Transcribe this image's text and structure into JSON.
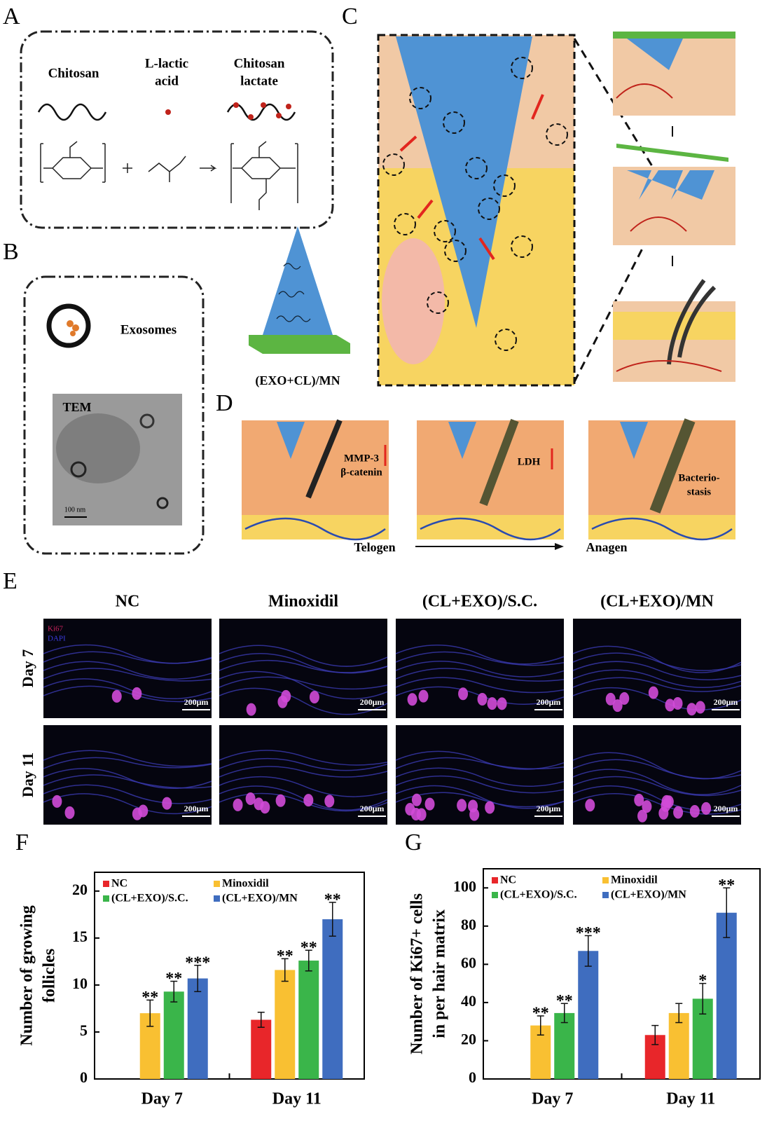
{
  "panel_labels": [
    "A",
    "B",
    "C",
    "D",
    "E",
    "F",
    "G"
  ],
  "panel_a": {
    "chitosan": "Chitosan",
    "lactic_acid": [
      "L-lactic",
      "acid"
    ],
    "chitosan_lactate": [
      "Chitosan",
      "lactate"
    ]
  },
  "panel_b": {
    "exosomes": "Exosomes",
    "tem": "TEM",
    "scale": "100 nm",
    "microneedle": "(EXO+CL)/MN"
  },
  "panel_d": {
    "marker1": [
      "MMP-3",
      "β-catenin"
    ],
    "marker2": "LDH",
    "marker3": [
      "Bacterio-",
      "stasis"
    ],
    "start": "Telogen",
    "end": "Anagen"
  },
  "panel_e": {
    "columns": [
      "NC",
      "Minoxidil",
      "(CL+EXO)/S.C.",
      "(CL+EXO)/MN"
    ],
    "rows": [
      "Day 7",
      "Day 11"
    ],
    "stain1": "Ki67",
    "stain2": "DAPI",
    "scale": "200μm"
  },
  "chart_data": [
    {
      "type": "bar",
      "ylabel": [
        "Number of growing",
        "follicles"
      ],
      "categories": [
        "Day 7",
        "Day 11"
      ],
      "series": [
        {
          "name": "NC",
          "color": "#e8262a",
          "values": [
            null,
            6.3
          ],
          "errors": [
            null,
            0.8
          ],
          "significance": [
            null,
            null
          ]
        },
        {
          "name": "Minoxidil",
          "color": "#f9c032",
          "values": [
            7,
            11.6
          ],
          "errors": [
            1.4,
            1.2
          ],
          "significance": [
            "**",
            "**"
          ]
        },
        {
          "name": "(CL+EXO)/S.C.",
          "color": "#3ab54a",
          "values": [
            9.3,
            12.6
          ],
          "errors": [
            1.1,
            1.1
          ],
          "significance": [
            "**",
            "**"
          ]
        },
        {
          "name": "(CL+EXO)/MN",
          "color": "#3f6dbf",
          "values": [
            10.7,
            17
          ],
          "errors": [
            1.4,
            1.8
          ],
          "significance": [
            "***",
            "**"
          ]
        }
      ],
      "ylim": [
        0,
        22
      ],
      "yticks": [
        0,
        5,
        10,
        15,
        20
      ]
    },
    {
      "type": "bar",
      "ylabel": [
        "Number of Ki67+ cells",
        "in per hair matrix"
      ],
      "categories": [
        "Day 7",
        "Day 11"
      ],
      "series": [
        {
          "name": "NC",
          "color": "#e8262a",
          "values": [
            null,
            23
          ],
          "errors": [
            null,
            5
          ],
          "significance": [
            null,
            null
          ]
        },
        {
          "name": "Minoxidil",
          "color": "#f9c032",
          "values": [
            28,
            34.5
          ],
          "errors": [
            5,
            5
          ],
          "significance": [
            "**",
            null
          ]
        },
        {
          "name": "(CL+EXO)/S.C.",
          "color": "#3ab54a",
          "values": [
            34.5,
            42
          ],
          "errors": [
            5,
            8
          ],
          "significance": [
            "**",
            "*"
          ]
        },
        {
          "name": "(CL+EXO)/MN",
          "color": "#3f6dbf",
          "values": [
            67,
            87
          ],
          "errors": [
            8,
            13
          ],
          "significance": [
            "***",
            "**"
          ]
        }
      ],
      "ylim": [
        0,
        110
      ],
      "yticks": [
        0,
        20,
        40,
        60,
        80,
        100
      ]
    }
  ]
}
